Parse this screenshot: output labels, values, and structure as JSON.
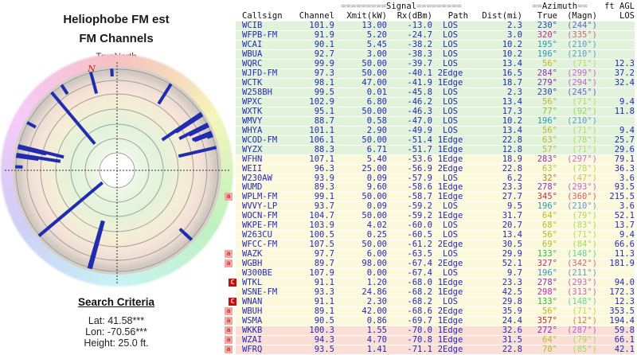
{
  "left_panel": {
    "title_line1": "Heliophobe FM est",
    "title_line2": "FM Channels",
    "north_label": "TrueNorth",
    "magnetic_north_marker": "N",
    "search": {
      "heading": "Search Criteria",
      "lat": "Lat: 41.58***",
      "lon": "Lon: -70.56***",
      "height": "Height: 25.0 ft."
    }
  },
  "table": {
    "header": {
      "signal": {
        "pad_left": "=========",
        "label": "Signal",
        "pad_right": "========="
      },
      "azimuth": {
        "pad_left": "==",
        "label": "Azimuth",
        "pad_right": "=="
      },
      "agl_label": "ft AGL",
      "cols": {
        "callsign": "Callsign",
        "channel": "Channel",
        "xmit": "Xmit(kW)",
        "rx": "Rx(dBm)",
        "path": "Path",
        "dist": "Dist(mi)",
        "true_az": "True",
        "magn": "(Magn)",
        "los": "LOS"
      }
    },
    "rows": [
      {
        "marker": "",
        "callsign": "WCIB",
        "channel": "101.9",
        "xmit": "13.00",
        "rx": "-13.0",
        "path": "LOS",
        "dist": "2.3",
        "true": "230°",
        "magn": "(244°)",
        "agl": ""
      },
      {
        "marker": "",
        "callsign": "WFPB-FM",
        "channel": "91.9",
        "xmit": "5.20",
        "rx": "-24.7",
        "path": "LOS",
        "dist": "3.0",
        "true": "320°",
        "magn": "(335°)",
        "agl": ""
      },
      {
        "marker": "",
        "callsign": "WCAI",
        "channel": "90.1",
        "xmit": "5.45",
        "rx": "-38.2",
        "path": "LOS",
        "dist": "10.2",
        "true": "195°",
        "magn": "(210°)",
        "agl": ""
      },
      {
        "marker": "",
        "callsign": "WBUA",
        "channel": "92.7",
        "xmit": "3.00",
        "rx": "-38.3",
        "path": "LOS",
        "dist": "10.2",
        "true": "196°",
        "magn": "(210°)",
        "agl": ""
      },
      {
        "marker": "",
        "callsign": "WQRC",
        "channel": "99.9",
        "xmit": "50.00",
        "rx": "-39.7",
        "path": "LOS",
        "dist": "13.4",
        "true": "56°",
        "magn": "(71°)",
        "agl": "12.3"
      },
      {
        "marker": "",
        "callsign": "WJFD-FM",
        "channel": "97.3",
        "xmit": "50.00",
        "rx": "-40.1",
        "path": "2Edge",
        "dist": "16.5",
        "true": "284°",
        "magn": "(299°)",
        "agl": "37.2"
      },
      {
        "marker": "",
        "callsign": "WCTK",
        "channel": "98.1",
        "xmit": "47.00",
        "rx": "-41.9",
        "path": "1Edge",
        "dist": "18.7",
        "true": "279°",
        "magn": "(294°)",
        "agl": "32.4"
      },
      {
        "marker": "",
        "callsign": "W258BH",
        "channel": "99.5",
        "xmit": "0.01",
        "rx": "-45.8",
        "path": "LOS",
        "dist": "2.3",
        "true": "230°",
        "magn": "(245°)",
        "agl": ""
      },
      {
        "marker": "",
        "callsign": "WPXC",
        "channel": "102.9",
        "xmit": "6.80",
        "rx": "-46.2",
        "path": "LOS",
        "dist": "13.4",
        "true": "56°",
        "magn": "(71°)",
        "agl": "9.4"
      },
      {
        "marker": "",
        "callsign": "WXTK",
        "channel": "95.1",
        "xmit": "50.00",
        "rx": "-46.3",
        "path": "LOS",
        "dist": "17.3",
        "true": "77°",
        "magn": "(92°)",
        "agl": "11.8"
      },
      {
        "marker": "",
        "callsign": "WMVY",
        "channel": "88.7",
        "xmit": "0.58",
        "rx": "-47.0",
        "path": "LOS",
        "dist": "10.2",
        "true": "196°",
        "magn": "(210°)",
        "agl": ""
      },
      {
        "marker": "",
        "callsign": "WHYA",
        "channel": "101.1",
        "xmit": "2.90",
        "rx": "-49.9",
        "path": "LOS",
        "dist": "13.4",
        "true": "56°",
        "magn": "(71°)",
        "agl": "9.4"
      },
      {
        "marker": "",
        "callsign": "WCOD-FM",
        "channel": "106.1",
        "xmit": "50.00",
        "rx": "-51.4",
        "path": "1Edge",
        "dist": "22.8",
        "true": "63°",
        "magn": "(78°)",
        "agl": "25.7"
      },
      {
        "marker": "",
        "callsign": "WYZX",
        "channel": "88.3",
        "xmit": "6.71",
        "rx": "-51.7",
        "path": "1Edge",
        "dist": "12.8",
        "true": "57°",
        "magn": "(71°)",
        "agl": "29.6"
      },
      {
        "marker": "",
        "callsign": "WFHN",
        "channel": "107.1",
        "xmit": "5.40",
        "rx": "-53.6",
        "path": "1Edge",
        "dist": "18.9",
        "true": "283°",
        "magn": "(297°)",
        "agl": "79.1"
      },
      {
        "marker": "",
        "callsign": "WEII",
        "channel": "96.3",
        "xmit": "25.00",
        "rx": "-56.9",
        "path": "2Edge",
        "dist": "22.8",
        "true": "63°",
        "magn": "(78°)",
        "agl": "36.3"
      },
      {
        "marker": "",
        "callsign": "W230AW",
        "channel": "93.9",
        "xmit": "0.09",
        "rx": "-57.9",
        "path": "LOS",
        "dist": "6.2",
        "true": "32°",
        "magn": "(47°)",
        "agl": "3.6"
      },
      {
        "marker": "",
        "callsign": "WUMD",
        "channel": "89.3",
        "xmit": "9.60",
        "rx": "-58.6",
        "path": "1Edge",
        "dist": "23.3",
        "true": "278°",
        "magn": "(293°)",
        "agl": "93.5"
      },
      {
        "marker": "a",
        "callsign": "WPLM-FM",
        "channel": "99.1",
        "xmit": "50.00",
        "rx": "-58.7",
        "path": "1Edge",
        "dist": "27.7",
        "true": "345°",
        "magn": "(360°)",
        "agl": "215.5"
      },
      {
        "marker": "",
        "callsign": "WVVY-LP",
        "channel": "93.7",
        "xmit": "0.09",
        "rx": "-59.2",
        "path": "LOS",
        "dist": "9.5",
        "true": "196°",
        "magn": "(210°)",
        "agl": "3.6"
      },
      {
        "marker": "",
        "callsign": "WOCN-FM",
        "channel": "104.7",
        "xmit": "50.00",
        "rx": "-59.2",
        "path": "1Edge",
        "dist": "31.7",
        "true": "64°",
        "magn": "(79°)",
        "agl": "52.1"
      },
      {
        "marker": "",
        "callsign": "WKPE-FM",
        "channel": "103.9",
        "xmit": "4.02",
        "rx": "-60.0",
        "path": "LOS",
        "dist": "20.7",
        "true": "68°",
        "magn": "(83°)",
        "agl": "13.7"
      },
      {
        "marker": "",
        "callsign": "W263CU",
        "channel": "100.5",
        "xmit": "0.25",
        "rx": "-60.5",
        "path": "LOS",
        "dist": "13.4",
        "true": "56°",
        "magn": "(71°)",
        "agl": "9.4"
      },
      {
        "marker": "",
        "callsign": "WFCC-FM",
        "channel": "107.5",
        "xmit": "50.00",
        "rx": "-61.2",
        "path": "2Edge",
        "dist": "30.5",
        "true": "69°",
        "magn": "(84°)",
        "agl": "66.6"
      },
      {
        "marker": "a",
        "callsign": "WAZK",
        "channel": "97.7",
        "xmit": "6.00",
        "rx": "-63.5",
        "path": "LOS",
        "dist": "29.9",
        "true": "133°",
        "magn": "(148°)",
        "agl": "11.3"
      },
      {
        "marker": "a",
        "callsign": "WGBH",
        "channel": "89.7",
        "xmit": "98.00",
        "rx": "-67.4",
        "path": "2Edge",
        "dist": "52.1",
        "true": "327°",
        "magn": "(342°)",
        "agl": "181.9"
      },
      {
        "marker": "",
        "callsign": "W300BE",
        "channel": "107.9",
        "xmit": "0.00",
        "rx": "-67.4",
        "path": "LOS",
        "dist": "9.7",
        "true": "196°",
        "magn": "(211°)",
        "agl": ""
      },
      {
        "marker": "C",
        "callsign": "WTKL",
        "channel": "91.1",
        "xmit": "1.20",
        "rx": "-68.0",
        "path": "1Edge",
        "dist": "23.3",
        "true": "278°",
        "magn": "(293°)",
        "agl": "94.0"
      },
      {
        "marker": "",
        "callsign": "WSNE-FM",
        "channel": "93.3",
        "xmit": "24.86",
        "rx": "-68.2",
        "path": "1Edge",
        "dist": "42.5",
        "true": "298°",
        "magn": "(313°)",
        "agl": "172.3"
      },
      {
        "marker": "C",
        "callsign": "WNAN",
        "channel": "91.1",
        "xmit": "2.30",
        "rx": "-68.2",
        "path": "LOS",
        "dist": "29.8",
        "true": "133°",
        "magn": "(148°)",
        "agl": "12.3"
      },
      {
        "marker": "a",
        "callsign": "WBUH",
        "channel": "89.1",
        "xmit": "42.00",
        "rx": "-68.6",
        "path": "2Edge",
        "dist": "35.9",
        "true": "56°",
        "magn": "(71°)",
        "agl": "353.5"
      },
      {
        "marker": "a",
        "callsign": "WSMA",
        "channel": "90.5",
        "xmit": "0.86",
        "rx": "-69.7",
        "path": "1Edge",
        "dist": "24.4",
        "true": "357°",
        "magn": "(12°)",
        "agl": "194.4"
      },
      {
        "marker": "a",
        "callsign": "WKKB",
        "channel": "100.3",
        "xmit": "1.55",
        "rx": "-70.0",
        "path": "1Edge",
        "dist": "32.6",
        "true": "272°",
        "magn": "(287°)",
        "agl": "59.8"
      },
      {
        "marker": "a",
        "callsign": "WZAI",
        "channel": "94.3",
        "xmit": "4.70",
        "rx": "-70.8",
        "path": "1Edge",
        "dist": "31.5",
        "true": "64°",
        "magn": "(79°)",
        "agl": "66.1"
      },
      {
        "marker": "a",
        "callsign": "WFRQ",
        "channel": "93.5",
        "xmit": "1.41",
        "rx": "-71.1",
        "path": "2Edge",
        "dist": "22.8",
        "true": "70°",
        "magn": "(85°)",
        "agl": "42.1"
      }
    ]
  },
  "colors": {
    "row_strong": "#e1f3da",
    "row_medium": "#fcf9dc",
    "row_weak": "#fadfd6",
    "text_blue": "#2429bb",
    "bar_blue": "#1f2dae",
    "grid_gray": "#8f8f88",
    "north_marker_red": "#cc2211"
  }
}
